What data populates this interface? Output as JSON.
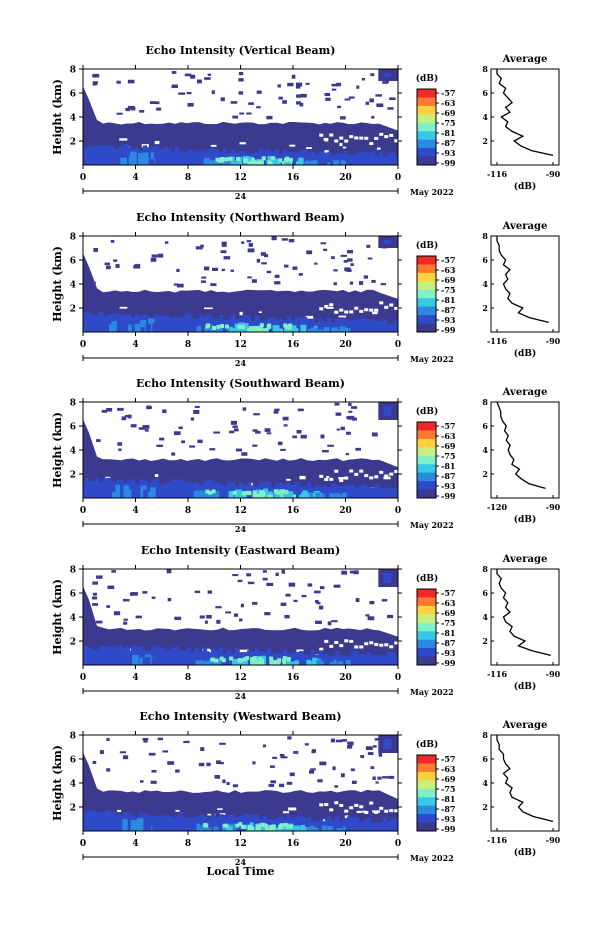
{
  "figure": {
    "shared": {
      "x_ticks": [
        "0",
        "4",
        "8",
        "12",
        "16",
        "20",
        "0"
      ],
      "date_day": "24",
      "date_label": "May 2022",
      "y_ticks": [
        "2",
        "4",
        "6",
        "8"
      ],
      "y_label": "Height (km)",
      "colorbar_unit": "(dB)",
      "colorbar_ticks": [
        "-57",
        "-63",
        "-69",
        "-75",
        "-81",
        "-87",
        "-93",
        "-99"
      ],
      "avg_title": "Average",
      "avg_xunit": "(dB)",
      "x_axis_label": "Local Time"
    },
    "colors": {
      "background": "#ffffff",
      "palette": [
        "#3b3a8e",
        "#2e4ac8",
        "#2a8ae0",
        "#39c7e6",
        "#7ff0c8",
        "#c8f07a",
        "#ffd040",
        "#ff7a30",
        "#f02828"
      ]
    }
  },
  "chart_data": [
    {
      "type": "heatmap",
      "title": "Echo Intensity (Vertical Beam)",
      "avg_xticks": [
        "-116",
        "-90"
      ],
      "x": [
        0,
        4,
        8,
        12,
        16,
        20,
        24
      ],
      "ylim": [
        0,
        8
      ],
      "clim": [
        -99,
        -57
      ],
      "avg_profile": {
        "height_km": [
          0.8,
          1.2,
          1.6,
          2.0,
          2.4,
          2.8,
          3.2,
          3.6,
          4.0,
          4.4,
          4.8,
          5.2,
          5.6,
          6.0,
          6.4,
          6.8,
          7.2,
          7.6,
          8.0
        ],
        "avg_db": [
          -90,
          -100,
          -105,
          -108,
          -104,
          -109,
          -112,
          -111,
          -114,
          -110,
          -112,
          -109,
          -111,
          -113,
          -112,
          -115,
          -114,
          -116,
          -116
        ]
      },
      "regions": {
        "top_km": 3.5,
        "cloud_km": [
          7.0,
          8.0
        ],
        "cloud_hours": [
          22.5,
          24
        ]
      }
    },
    {
      "type": "heatmap",
      "title": "Echo Intensity (Northward Beam)",
      "avg_xticks": [
        "-116",
        "-90"
      ],
      "x": [
        0,
        4,
        8,
        12,
        16,
        20,
        24
      ],
      "ylim": [
        0,
        8
      ],
      "clim": [
        -99,
        -57
      ],
      "avg_profile": {
        "height_km": [
          0.8,
          1.2,
          1.6,
          2.0,
          2.4,
          2.8,
          3.2,
          3.6,
          4.0,
          4.4,
          4.8,
          5.2,
          5.6,
          6.0,
          6.4,
          6.8,
          7.2,
          7.6,
          8.0
        ],
        "avg_db": [
          -92,
          -101,
          -106,
          -104,
          -109,
          -111,
          -110,
          -112,
          -113,
          -111,
          -112,
          -110,
          -113,
          -112,
          -114,
          -115,
          -115,
          -116,
          -116
        ]
      },
      "regions": {
        "top_km": 3.4,
        "cloud_km": [
          7.0,
          8.0
        ],
        "cloud_hours": [
          22.5,
          24
        ]
      }
    },
    {
      "type": "heatmap",
      "title": "Echo Intensity (Southward Beam)",
      "avg_xticks": [
        "-120",
        "-90"
      ],
      "x": [
        0,
        4,
        8,
        12,
        16,
        20,
        24
      ],
      "ylim": [
        0,
        8
      ],
      "clim": [
        -99,
        -57
      ],
      "avg_profile": {
        "height_km": [
          0.8,
          1.2,
          1.6,
          2.0,
          2.4,
          2.8,
          3.2,
          3.6,
          4.0,
          4.4,
          4.8,
          5.2,
          5.6,
          6.0,
          6.4,
          6.8,
          7.2,
          7.6,
          8.0
        ],
        "avg_db": [
          -94,
          -103,
          -107,
          -110,
          -108,
          -112,
          -111,
          -113,
          -114,
          -113,
          -115,
          -114,
          -116,
          -115,
          -117,
          -118,
          -118,
          -119,
          -120
        ]
      },
      "regions": {
        "top_km": 3.2,
        "cloud_km": [
          6.5,
          8.0
        ],
        "cloud_hours": [
          22.5,
          24
        ]
      }
    },
    {
      "type": "heatmap",
      "title": "Echo Intensity (Eastward Beam)",
      "avg_xticks": [
        "-116",
        "-90"
      ],
      "x": [
        0,
        4,
        8,
        12,
        16,
        20,
        24
      ],
      "ylim": [
        0,
        8
      ],
      "clim": [
        -99,
        -57
      ],
      "avg_profile": {
        "height_km": [
          0.8,
          1.2,
          1.6,
          2.0,
          2.4,
          2.8,
          3.2,
          3.6,
          4.0,
          4.4,
          4.8,
          5.2,
          5.6,
          6.0,
          6.4,
          6.8,
          7.2,
          7.6,
          8.0
        ],
        "avg_db": [
          -91,
          -100,
          -106,
          -103,
          -108,
          -110,
          -109,
          -112,
          -113,
          -110,
          -112,
          -111,
          -113,
          -112,
          -114,
          -115,
          -114,
          -116,
          -116
        ]
      },
      "regions": {
        "top_km": 3.0,
        "cloud_km": [
          6.5,
          8.0
        ],
        "cloud_hours": [
          22.5,
          24
        ]
      }
    },
    {
      "type": "heatmap",
      "title": "Echo Intensity (Westward Beam)",
      "avg_xticks": [
        "-116",
        "-90"
      ],
      "x": [
        0,
        4,
        8,
        12,
        16,
        20,
        24
      ],
      "ylim": [
        0,
        8
      ],
      "clim": [
        -99,
        -57
      ],
      "avg_profile": {
        "height_km": [
          0.8,
          1.2,
          1.6,
          2.0,
          2.4,
          2.8,
          3.2,
          3.6,
          4.0,
          4.4,
          4.8,
          5.2,
          5.6,
          6.0,
          6.4,
          6.8,
          7.2,
          7.6,
          8.0
        ],
        "avg_db": [
          -90,
          -99,
          -104,
          -106,
          -104,
          -109,
          -110,
          -109,
          -112,
          -111,
          -113,
          -110,
          -112,
          -113,
          -113,
          -115,
          -115,
          -116,
          -116
        ]
      },
      "regions": {
        "top_km": 3.3,
        "cloud_km": [
          6.5,
          8.0
        ],
        "cloud_hours": [
          22.5,
          24
        ]
      }
    }
  ]
}
